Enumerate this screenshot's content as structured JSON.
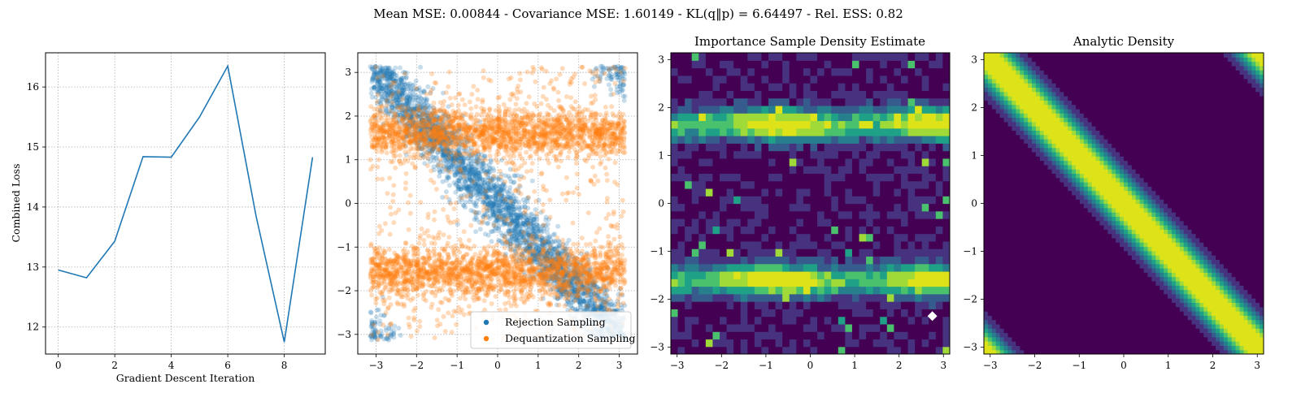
{
  "figure": {
    "suptitle": "Mean MSE: 0.00844 - Covariance MSE: 1.60149 - KL(q‖p) = 6.64497 - Rel. ESS: 0.82"
  },
  "chart_data": [
    {
      "type": "line",
      "title": "",
      "xlabel": "Gradient Descent Iteration",
      "ylabel": "Combined Loss",
      "x": [
        0,
        1,
        2,
        3,
        4,
        5,
        6,
        7,
        8,
        9
      ],
      "series": [
        {
          "values": [
            12.95,
            12.82,
            13.43,
            14.84,
            14.83,
            15.5,
            16.35,
            13.85,
            11.75,
            14.83
          ]
        }
      ],
      "xlim": [
        -0.45,
        9.45
      ],
      "ylim": [
        11.55,
        16.57
      ],
      "xticks": [
        0,
        2,
        4,
        6,
        8
      ],
      "yticks": [
        12,
        13,
        14,
        15,
        16
      ],
      "grid": true,
      "color": "#1f77b4"
    },
    {
      "type": "scatter",
      "title": "",
      "xlim": [
        -3.45,
        3.45
      ],
      "ylim": [
        -3.45,
        3.45
      ],
      "xticks": [
        -3,
        -2,
        -1,
        0,
        1,
        2,
        3
      ],
      "yticks": [
        -3,
        -2,
        -1,
        0,
        1,
        2,
        3
      ],
      "grid": true,
      "legend_position": "lower-right",
      "series": [
        {
          "name": "Rejection Sampling",
          "color": "#1f77b4",
          "points_approx": 6000,
          "distribution": "diagonal band along y = -x, wrapped on the torus"
        },
        {
          "name": "Dequantization Sampling",
          "color": "#ff7f0e",
          "points_approx": 9000,
          "distribution": "uniform background with horizontal concentrations near y = 1.6 and y = -1.6"
        }
      ]
    },
    {
      "type": "heatmap",
      "title": "Importance Sample Density Estimate",
      "xlim": [
        -3.14159,
        3.14159
      ],
      "ylim": [
        -3.14159,
        3.14159
      ],
      "xticks": [
        -3,
        -2,
        -1,
        0,
        1,
        2,
        3
      ],
      "yticks": [
        -3,
        -2,
        -1,
        0,
        1,
        2,
        3
      ],
      "colormap": "viridis",
      "high_density_bands_y": [
        1.65,
        -1.6
      ],
      "marker": {
        "x": 2.75,
        "y": -2.35,
        "color": "#ffffff"
      }
    },
    {
      "type": "heatmap",
      "title": "Analytic Density",
      "xlim": [
        -3.14159,
        3.14159
      ],
      "ylim": [
        -3.14159,
        3.14159
      ],
      "xticks": [
        -3,
        -2,
        -1,
        0,
        1,
        2,
        3
      ],
      "yticks": [
        -3,
        -2,
        -1,
        0,
        1,
        2,
        3
      ],
      "colormap": "viridis",
      "ridge": "y = -x wrapped by 2π"
    }
  ]
}
